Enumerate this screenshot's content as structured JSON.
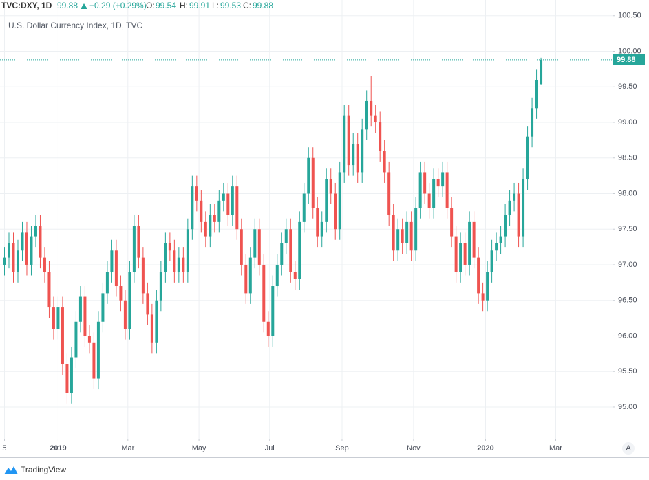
{
  "header": {
    "symbol": "TVC:DXY, 1D",
    "last": "99.88",
    "change": "+0.29 (+0.29%)",
    "ohlc": [
      {
        "label": "O:",
        "value": "99.54"
      },
      {
        "label": "H:",
        "value": "99.91"
      },
      {
        "label": "L:",
        "value": "99.53"
      },
      {
        "label": "C:",
        "value": "99.88"
      }
    ]
  },
  "chart_data": {
    "type": "candlestick",
    "title": "U.S. Dollar Currency Index, 1D, TVC",
    "x": [
      0,
      1,
      2,
      3,
      4,
      5,
      6,
      7,
      8,
      9,
      10,
      11,
      12,
      13,
      14,
      15,
      16,
      17,
      18,
      19,
      20,
      21,
      22,
      23,
      24,
      25,
      26,
      27,
      28,
      29,
      30,
      31,
      32,
      33,
      34,
      35,
      36,
      37,
      38,
      39,
      40,
      41,
      42,
      43,
      44,
      45,
      46,
      47,
      48,
      49,
      50,
      51,
      52,
      53,
      54,
      55,
      56,
      57,
      58,
      59,
      60,
      61,
      62,
      63,
      64,
      65,
      66,
      67,
      68,
      69,
      70,
      71,
      72,
      73,
      74,
      75,
      76,
      77,
      78,
      79,
      80,
      81,
      82,
      83,
      84,
      85,
      86,
      87,
      88,
      89,
      90,
      91,
      92,
      93,
      94,
      95,
      96,
      97,
      98,
      99,
      100,
      101,
      102,
      103,
      104,
      105,
      106,
      107,
      108,
      109,
      110,
      111,
      112,
      113,
      114,
      115,
      116,
      117,
      118,
      119,
      120
    ],
    "open": [
      97.0,
      97.1,
      97.3,
      96.9,
      97.2,
      97.45,
      97.0,
      97.4,
      97.55,
      97.1,
      96.9,
      96.4,
      96.1,
      96.4,
      95.6,
      95.2,
      95.7,
      96.2,
      96.55,
      96.0,
      95.9,
      95.4,
      96.2,
      96.6,
      96.9,
      97.2,
      96.7,
      96.5,
      96.1,
      96.9,
      97.55,
      97.1,
      96.6,
      96.3,
      95.9,
      96.5,
      96.9,
      97.3,
      97.2,
      96.9,
      97.1,
      96.9,
      97.5,
      98.1,
      97.9,
      97.6,
      97.4,
      97.7,
      97.6,
      97.9,
      98.0,
      97.7,
      98.1,
      97.5,
      97.0,
      96.6,
      97.1,
      97.5,
      97.0,
      96.2,
      96.0,
      96.7,
      97.0,
      97.3,
      97.5,
      96.9,
      96.8,
      97.6,
      98.0,
      98.5,
      97.8,
      97.4,
      97.6,
      98.2,
      98.0,
      97.5,
      98.3,
      99.1,
      98.4,
      98.7,
      98.3,
      98.9,
      99.3,
      99.1,
      99.0,
      98.6,
      98.3,
      97.7,
      97.2,
      97.5,
      97.3,
      97.6,
      97.2,
      97.8,
      98.3,
      98.0,
      97.8,
      98.2,
      98.1,
      98.3,
      97.8,
      97.4,
      96.9,
      97.3,
      97.0,
      97.6,
      97.1,
      96.6,
      96.5,
      96.9,
      97.2,
      97.3,
      97.4,
      97.7,
      97.9,
      98.0,
      97.4,
      98.2,
      98.8,
      99.2,
      99.54
    ],
    "high": [
      97.25,
      97.45,
      97.45,
      97.35,
      97.6,
      97.6,
      97.55,
      97.7,
      97.7,
      97.25,
      97.05,
      96.55,
      96.55,
      96.55,
      95.75,
      95.85,
      96.35,
      96.7,
      96.7,
      96.15,
      96.05,
      96.35,
      96.75,
      97.05,
      97.35,
      97.35,
      96.85,
      96.65,
      97.05,
      97.7,
      97.7,
      97.25,
      96.75,
      96.45,
      96.65,
      97.05,
      97.45,
      97.45,
      97.35,
      97.25,
      97.25,
      97.65,
      98.25,
      98.25,
      98.05,
      97.75,
      97.85,
      97.85,
      98.05,
      98.15,
      98.15,
      98.25,
      98.25,
      97.65,
      97.15,
      97.25,
      97.65,
      97.65,
      97.15,
      96.35,
      96.85,
      97.15,
      97.45,
      97.65,
      97.65,
      97.05,
      97.75,
      98.15,
      98.65,
      98.65,
      97.95,
      97.75,
      98.35,
      98.35,
      98.15,
      98.45,
      99.25,
      99.25,
      98.85,
      98.85,
      99.05,
      99.45,
      99.65,
      99.25,
      99.15,
      98.75,
      98.45,
      97.85,
      97.65,
      97.65,
      97.75,
      97.75,
      97.95,
      98.45,
      98.45,
      98.15,
      98.35,
      98.35,
      98.45,
      98.45,
      97.95,
      97.55,
      97.45,
      97.45,
      97.75,
      97.75,
      97.25,
      96.75,
      97.05,
      97.35,
      97.45,
      97.55,
      97.85,
      98.05,
      98.15,
      98.15,
      98.35,
      98.95,
      99.35,
      99.74,
      99.91
    ],
    "low": [
      96.85,
      96.95,
      96.75,
      96.75,
      97.05,
      96.85,
      96.85,
      97.25,
      96.95,
      96.75,
      96.25,
      95.95,
      95.95,
      95.45,
      95.05,
      95.05,
      95.55,
      96.05,
      95.85,
      95.75,
      95.25,
      95.25,
      96.05,
      96.45,
      96.75,
      96.55,
      96.35,
      95.95,
      95.95,
      96.75,
      96.95,
      96.45,
      96.15,
      95.75,
      95.75,
      96.35,
      96.75,
      97.05,
      96.75,
      96.75,
      96.75,
      96.75,
      97.35,
      97.75,
      97.45,
      97.25,
      97.25,
      97.45,
      97.45,
      97.75,
      97.55,
      97.55,
      97.35,
      96.85,
      96.45,
      96.45,
      96.95,
      96.85,
      96.05,
      95.85,
      95.85,
      96.55,
      96.85,
      97.15,
      96.75,
      96.65,
      96.65,
      97.45,
      97.85,
      97.65,
      97.25,
      97.25,
      97.45,
      97.85,
      97.35,
      97.35,
      98.15,
      98.25,
      98.25,
      98.15,
      98.15,
      98.75,
      98.95,
      98.85,
      98.45,
      98.15,
      97.55,
      97.05,
      97.05,
      97.15,
      97.15,
      97.05,
      97.05,
      97.65,
      97.85,
      97.65,
      97.65,
      97.95,
      97.95,
      97.65,
      97.25,
      96.75,
      96.75,
      96.85,
      96.85,
      96.95,
      96.45,
      96.35,
      96.35,
      96.75,
      97.05,
      97.15,
      97.25,
      97.55,
      97.75,
      97.25,
      97.25,
      98.05,
      98.65,
      99.05,
      99.53
    ],
    "close": [
      97.1,
      97.3,
      96.9,
      97.2,
      97.45,
      97.0,
      97.4,
      97.55,
      97.1,
      96.9,
      96.4,
      96.1,
      96.4,
      95.6,
      95.2,
      95.7,
      96.2,
      96.55,
      96.0,
      95.9,
      95.4,
      96.2,
      96.6,
      96.9,
      97.2,
      96.7,
      96.5,
      96.1,
      96.9,
      97.55,
      97.1,
      96.6,
      96.3,
      95.9,
      96.5,
      96.9,
      97.3,
      97.2,
      96.9,
      97.1,
      96.9,
      97.5,
      98.1,
      97.9,
      97.6,
      97.4,
      97.7,
      97.6,
      97.9,
      98.0,
      97.7,
      98.1,
      97.5,
      97.0,
      96.6,
      97.1,
      97.5,
      97.0,
      96.2,
      96.0,
      96.7,
      97.0,
      97.3,
      97.5,
      96.9,
      96.8,
      97.6,
      98.0,
      98.5,
      97.8,
      97.4,
      97.6,
      98.2,
      98.0,
      97.5,
      98.3,
      99.1,
      98.4,
      98.7,
      98.3,
      98.9,
      99.3,
      99.1,
      99.0,
      98.6,
      98.3,
      97.7,
      97.2,
      97.5,
      97.3,
      97.6,
      97.2,
      97.8,
      98.3,
      98.0,
      97.8,
      98.2,
      98.1,
      98.3,
      97.8,
      97.4,
      96.9,
      97.3,
      97.0,
      97.6,
      97.1,
      96.6,
      96.5,
      96.9,
      97.2,
      97.3,
      97.4,
      97.7,
      97.9,
      98.0,
      97.4,
      98.2,
      98.8,
      99.2,
      99.59,
      99.88
    ],
    "up_color": "#26a69a",
    "down_color": "#ef5350",
    "xlim": [
      -1,
      136
    ],
    "xticks": [
      {
        "value": 0,
        "label": "5"
      },
      {
        "value": 12,
        "label": "2019"
      },
      {
        "value": 27.6,
        "label": "Mar"
      },
      {
        "value": 43.5,
        "label": "May"
      },
      {
        "value": 59.3,
        "label": "Jul"
      },
      {
        "value": 75.5,
        "label": "Sep"
      },
      {
        "value": 91.5,
        "label": "Nov"
      },
      {
        "value": 107.6,
        "label": "2020"
      },
      {
        "value": 123.3,
        "label": "Mar"
      }
    ],
    "ylim": [
      94.555,
      100.72
    ],
    "yticks": [
      {
        "value": 95,
        "label": "95.00"
      },
      {
        "value": 95.5,
        "label": "95.50"
      },
      {
        "value": 96,
        "label": "96.00"
      },
      {
        "value": 96.5,
        "label": "96.50"
      },
      {
        "value": 97,
        "label": "97.00"
      },
      {
        "value": 97.5,
        "label": "97.50"
      },
      {
        "value": 98,
        "label": "98.00"
      },
      {
        "value": 98.5,
        "label": "98.50"
      },
      {
        "value": 99,
        "label": "99.00"
      },
      {
        "value": 99.5,
        "label": "99.50"
      },
      {
        "value": 100,
        "label": "100.00"
      },
      {
        "value": 100.5,
        "label": "100.50"
      }
    ],
    "grid": true,
    "last_price_line": true
  },
  "scale_button": "A",
  "footer": {
    "brand": "TradingView"
  }
}
